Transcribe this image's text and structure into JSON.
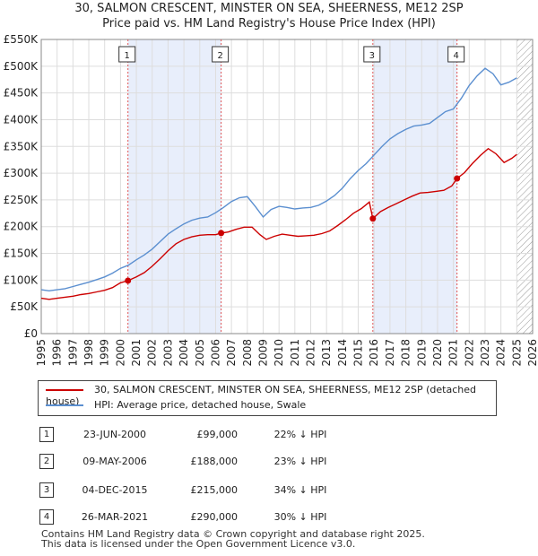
{
  "title_line1": "30, SALMON CRESCENT, MINSTER ON SEA, SHEERNESS, ME12 2SP",
  "title_line2": "Price paid vs. HM Land Registry's House Price Index (HPI)",
  "legend": {
    "property": "30, SALMON CRESCENT, MINSTER ON SEA, SHEERNESS, ME12 2SP (detached house)",
    "hpi": "HPI: Average price, detached house, Swale"
  },
  "colors": {
    "property": "#cc0000",
    "hpi": "#5b8fd0",
    "shade": "#e8eefb",
    "future_hatch": "#999999"
  },
  "sales": [
    {
      "num": "1",
      "date": "23-JUN-2000",
      "price": "£99,000",
      "hpi": "22% ↓ HPI"
    },
    {
      "num": "2",
      "date": "09-MAY-2006",
      "price": "£188,000",
      "hpi": "23% ↓ HPI"
    },
    {
      "num": "3",
      "date": "04-DEC-2015",
      "price": "£215,000",
      "hpi": "34% ↓ HPI"
    },
    {
      "num": "4",
      "date": "26-MAR-2021",
      "price": "£290,000",
      "hpi": "30% ↓ HPI"
    }
  ],
  "footer_line1": "Contains HM Land Registry data © Crown copyright and database right 2025.",
  "footer_line2": "This data is licensed under the Open Government Licence v3.0.",
  "chart_data": {
    "type": "line",
    "title": "30, SALMON CRESCENT, MINSTER ON SEA, SHEERNESS, ME12 2SP — Price paid vs. HM Land Registry's House Price Index (HPI)",
    "xlabel": "",
    "ylabel": "",
    "xlim": [
      1995,
      2026
    ],
    "ylim": [
      0,
      550000
    ],
    "grid": true,
    "x_ticks": [
      "1995",
      "1996",
      "1997",
      "1998",
      "1999",
      "2000",
      "2001",
      "2002",
      "2003",
      "2004",
      "2005",
      "2006",
      "2007",
      "2008",
      "2009",
      "2010",
      "2011",
      "2012",
      "2013",
      "2014",
      "2015",
      "2016",
      "2017",
      "2018",
      "2019",
      "2020",
      "2021",
      "2022",
      "2023",
      "2024",
      "2025",
      "2026"
    ],
    "y_ticks": [
      {
        "value": 0,
        "label": "£0"
      },
      {
        "value": 50000,
        "label": "£50K"
      },
      {
        "value": 100000,
        "label": "£100K"
      },
      {
        "value": 150000,
        "label": "£150K"
      },
      {
        "value": 200000,
        "label": "£200K"
      },
      {
        "value": 250000,
        "label": "£250K"
      },
      {
        "value": 300000,
        "label": "£300K"
      },
      {
        "value": 350000,
        "label": "£350K"
      },
      {
        "value": 400000,
        "label": "£400K"
      },
      {
        "value": 450000,
        "label": "£450K"
      },
      {
        "value": 500000,
        "label": "£500K"
      },
      {
        "value": 550000,
        "label": "£550K"
      }
    ],
    "shaded_periods": [
      [
        2000.47,
        2006.35
      ],
      [
        2015.92,
        2021.23
      ]
    ],
    "future_from": 2025.0,
    "series": [
      {
        "name": "HPI: Average price, detached house, Swale",
        "color": "#5b8fd0",
        "x": [
          1995,
          1995.5,
          1996,
          1996.5,
          1997,
          1997.5,
          1998,
          1998.5,
          1999,
          1999.5,
          2000,
          2000.5,
          2001,
          2001.5,
          2002,
          2002.5,
          2003,
          2003.5,
          2004,
          2004.5,
          2005,
          2005.5,
          2006,
          2006.5,
          2007,
          2007.5,
          2008,
          2008.5,
          2009,
          2009.5,
          2010,
          2010.5,
          2011,
          2011.5,
          2012,
          2012.5,
          2013,
          2013.5,
          2014,
          2014.5,
          2015,
          2015.5,
          2016,
          2016.5,
          2017,
          2017.5,
          2018,
          2018.5,
          2019,
          2019.5,
          2020,
          2020.5,
          2021,
          2021.5,
          2022,
          2022.5,
          2023,
          2023.5,
          2024,
          2024.5,
          2025
        ],
        "values": [
          82000,
          80000,
          82000,
          84000,
          88000,
          92000,
          96000,
          101000,
          106000,
          113000,
          122000,
          128000,
          138000,
          147000,
          158000,
          172000,
          186000,
          196000,
          205000,
          212000,
          216000,
          218000,
          226000,
          236000,
          247000,
          254000,
          256000,
          238000,
          218000,
          232000,
          238000,
          236000,
          233000,
          235000,
          236000,
          240000,
          248000,
          258000,
          272000,
          290000,
          305000,
          318000,
          334000,
          350000,
          364000,
          374000,
          382000,
          388000,
          390000,
          393000,
          404000,
          415000,
          420000,
          440000,
          464000,
          482000,
          496000,
          486000,
          465000,
          470000,
          478000
        ]
      },
      {
        "name": "30, SALMON CRESCENT, MINSTER ON SEA, SHEERNESS, ME12 2SP (detached house)",
        "color": "#cc0000",
        "x": [
          1995,
          1995.5,
          1996,
          1996.5,
          1997,
          1997.5,
          1998,
          1998.5,
          1999,
          1999.5,
          2000,
          2000.47,
          2001,
          2001.5,
          2002,
          2002.5,
          2003,
          2003.5,
          2004,
          2004.5,
          2005,
          2005.5,
          2006,
          2006.35,
          2006.8,
          2007.3,
          2007.8,
          2008.3,
          2008.8,
          2009.2,
          2009.7,
          2010.2,
          2010.7,
          2011.2,
          2011.7,
          2012.2,
          2012.7,
          2013.2,
          2013.7,
          2014.2,
          2014.7,
          2015.2,
          2015.7,
          2015.92,
          2016.4,
          2016.9,
          2017.4,
          2017.9,
          2018.4,
          2018.9,
          2019.4,
          2019.9,
          2020.4,
          2020.9,
          2021.23,
          2021.7,
          2022.2,
          2022.7,
          2023.2,
          2023.7,
          2024.2,
          2024.7,
          2025
        ],
        "values": [
          66000,
          64000,
          66000,
          68000,
          70000,
          73000,
          75000,
          78000,
          81000,
          86000,
          95000,
          99000,
          106000,
          114000,
          126000,
          140000,
          155000,
          168000,
          176000,
          181000,
          184000,
          185000,
          185000,
          188000,
          190000,
          195000,
          199000,
          199000,
          185000,
          176000,
          182000,
          186000,
          184000,
          182000,
          183000,
          184000,
          187000,
          192000,
          202000,
          213000,
          225000,
          234000,
          246000,
          215000,
          228000,
          236000,
          243000,
          250000,
          257000,
          263000,
          264000,
          266000,
          268000,
          276000,
          290000,
          301000,
          318000,
          333000,
          346000,
          336000,
          320000,
          328000,
          335000
        ]
      }
    ],
    "sales_markers": [
      {
        "label": "1",
        "x": 2000.47,
        "y": 99000
      },
      {
        "label": "2",
        "x": 2006.35,
        "y": 188000
      },
      {
        "label": "3",
        "x": 2015.92,
        "y": 215000
      },
      {
        "label": "4",
        "x": 2021.23,
        "y": 290000
      }
    ]
  }
}
